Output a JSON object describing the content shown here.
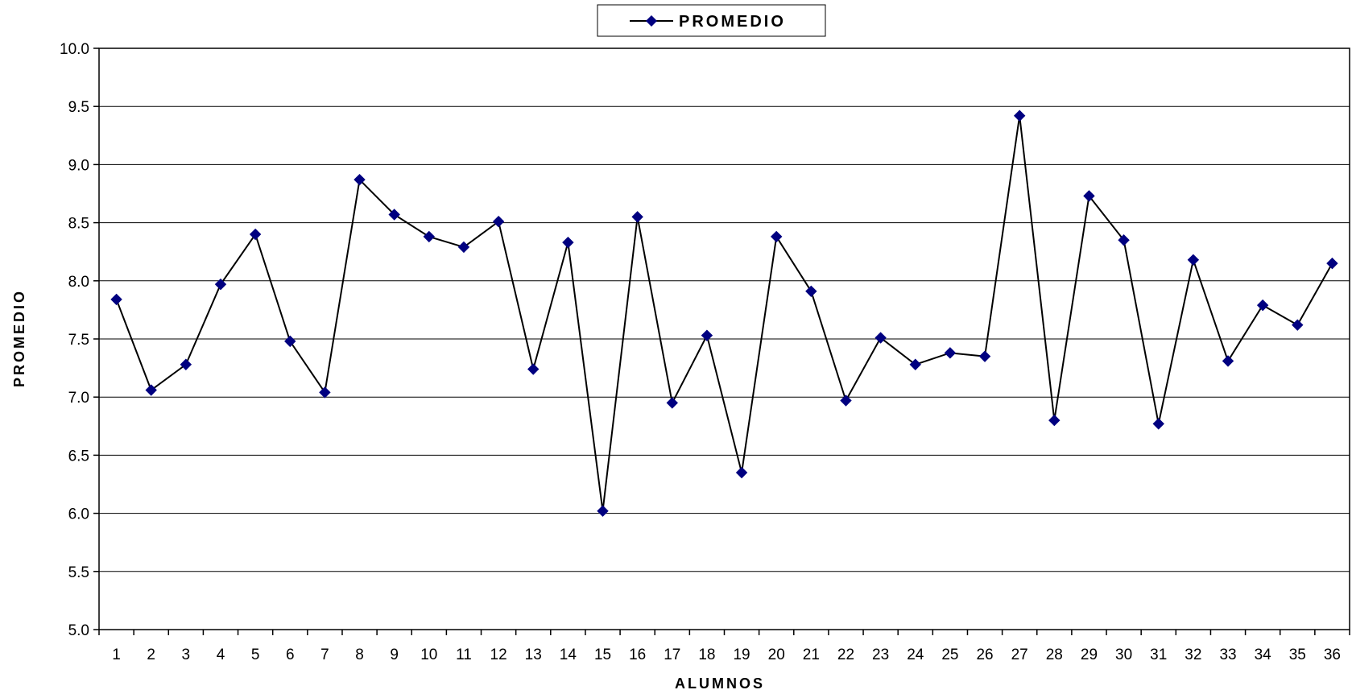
{
  "chart_data": {
    "type": "line",
    "title": "",
    "xlabel": "ALUMNOS",
    "ylabel": "PROMEDIO",
    "ylim": [
      5.0,
      10.0
    ],
    "ytick_step": 0.5,
    "grid": "horizontal",
    "legend_position": "top-center",
    "categories": [
      "1",
      "2",
      "3",
      "4",
      "5",
      "6",
      "7",
      "8",
      "9",
      "10",
      "11",
      "12",
      "13",
      "14",
      "15",
      "16",
      "17",
      "18",
      "19",
      "20",
      "21",
      "22",
      "23",
      "24",
      "25",
      "26",
      "27",
      "28",
      "29",
      "30",
      "31",
      "32",
      "33",
      "34",
      "35",
      "36"
    ],
    "series": [
      {
        "name": "PROMEDIO",
        "color": "#000080",
        "line_color": "#000000",
        "marker": "diamond",
        "values": [
          7.84,
          7.06,
          7.28,
          7.97,
          8.4,
          7.48,
          7.04,
          8.87,
          8.57,
          8.38,
          8.29,
          8.51,
          7.24,
          8.33,
          6.02,
          8.55,
          6.95,
          7.53,
          6.35,
          8.38,
          7.91,
          6.97,
          7.51,
          7.28,
          7.38,
          7.35,
          9.42,
          6.8,
          8.73,
          8.35,
          6.77,
          8.18,
          7.31,
          7.79,
          7.62,
          8.15
        ]
      }
    ]
  }
}
